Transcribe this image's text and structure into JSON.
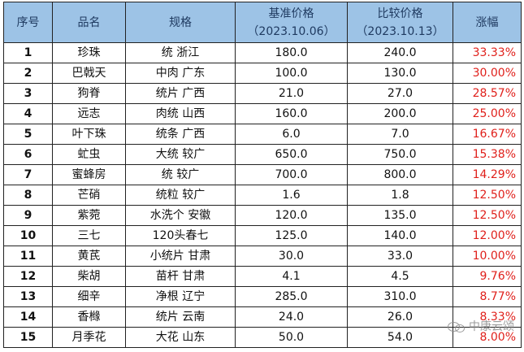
{
  "table": {
    "headers": {
      "no": "序号",
      "name": "品名",
      "spec": "规格",
      "base_price": "基准价格",
      "base_date": "（2023.10.06）",
      "compare_price": "比较价格",
      "compare_date": "（2023.10.13）",
      "change": "涨幅"
    },
    "rows": [
      {
        "no": "1",
        "name": "珍珠",
        "spec": "统 浙江",
        "base": "180.0",
        "compare": "240.0",
        "change": "33.33%"
      },
      {
        "no": "2",
        "name": "巴戟天",
        "spec": "中肉 广东",
        "base": "100.0",
        "compare": "130.0",
        "change": "30.00%"
      },
      {
        "no": "3",
        "name": "狗脊",
        "spec": "统片 广西",
        "base": "21.0",
        "compare": "27.0",
        "change": "28.57%"
      },
      {
        "no": "4",
        "name": "远志",
        "spec": "肉统 山西",
        "base": "160.0",
        "compare": "200.0",
        "change": "25.00%"
      },
      {
        "no": "5",
        "name": "叶下珠",
        "spec": "统条 广西",
        "base": "6.0",
        "compare": "7.0",
        "change": "16.67%"
      },
      {
        "no": "6",
        "name": "虻虫",
        "spec": "大统 较广",
        "base": "650.0",
        "compare": "750.0",
        "change": "15.38%"
      },
      {
        "no": "7",
        "name": "蜜蜂房",
        "spec": "统 较广",
        "base": "700.0",
        "compare": "800.0",
        "change": "14.29%"
      },
      {
        "no": "8",
        "name": "芒硝",
        "spec": "统粒 较广",
        "base": "1.6",
        "compare": "1.8",
        "change": "12.50%"
      },
      {
        "no": "9",
        "name": "紫菀",
        "spec": "水洗个 安徽",
        "base": "120.0",
        "compare": "135.0",
        "change": "12.50%"
      },
      {
        "no": "10",
        "name": "三七",
        "spec": "120头春七",
        "base": "125.0",
        "compare": "140.0",
        "change": "12.00%"
      },
      {
        "no": "11",
        "name": "黄芪",
        "spec": "小统片 甘肃",
        "base": "30.0",
        "compare": "33.0",
        "change": "10.00%"
      },
      {
        "no": "12",
        "name": "柴胡",
        "spec": "苗杆 甘肃",
        "base": "4.1",
        "compare": "4.5",
        "change": "9.76%"
      },
      {
        "no": "13",
        "name": "细辛",
        "spec": "净根 辽宁",
        "base": "285.0",
        "compare": "310.0",
        "change": "8.77%"
      },
      {
        "no": "14",
        "name": "香橼",
        "spec": "统片 云南",
        "base": "24.0",
        "compare": "26.0",
        "change": "8.33%"
      },
      {
        "no": "15",
        "name": "月季花",
        "spec": "大花 山东",
        "base": "50.0",
        "compare": "54.0",
        "change": "8.00%"
      }
    ]
  },
  "watermark": {
    "text": "中康云颂",
    "icon": "wechat-icon"
  }
}
